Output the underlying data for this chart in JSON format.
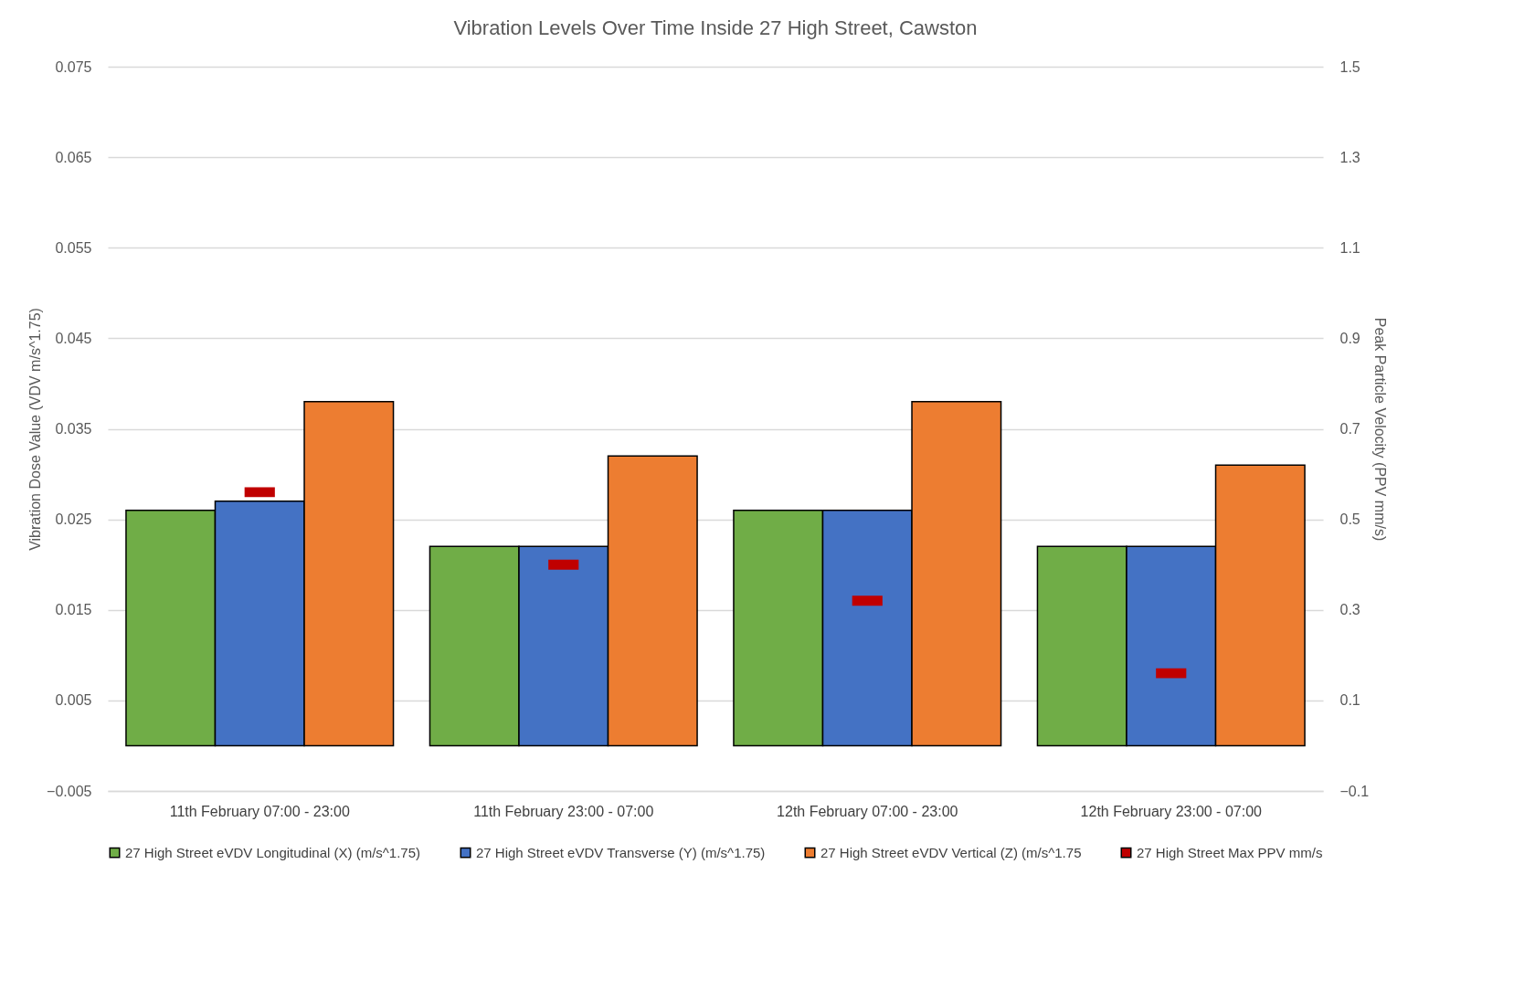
{
  "chart_data": {
    "type": "bar",
    "title": "Vibration Levels Over Time Inside 27 High Street, Cawston",
    "ylabel": "Vibration Dose Value (VDV m/s^1.75)",
    "y2label": "Peak Particle Velocity (PPV mm/s)",
    "categories": [
      "11th February 07:00 - 23:00",
      "11th February 23:00 - 07:00",
      "12th February 07:00 - 23:00",
      "12th February 23:00 - 07:00"
    ],
    "series": [
      {
        "name": "27 High Street eVDV Longitudinal (X) (m/s^1.75)",
        "color": "#70ad47",
        "values": [
          0.026,
          0.022,
          0.026,
          0.022
        ]
      },
      {
        "name": "27 High Street eVDV Transverse (Y) (m/s^1.75)",
        "color": "#4472c4",
        "values": [
          0.027,
          0.022,
          0.026,
          0.022
        ]
      },
      {
        "name": "27 High Street eVDV Vertical (Z) (m/s^1.75",
        "color": "#ed7d31",
        "values": [
          0.038,
          0.032,
          0.038,
          0.031
        ]
      },
      {
        "name": "27 High Street Max PPV mm/s",
        "color": "#c00000",
        "type": "scatter",
        "axis": "y2",
        "x": [
          "11th February 07:00 - 23:00",
          "11th February 23:00 - 07:00",
          "12th February 07:00 - 23:00",
          "12th February 23:00 - 07:00"
        ],
        "values": [
          0.56,
          0.4,
          0.32,
          0.16
        ]
      }
    ],
    "ylim": [
      -0.005,
      0.075
    ],
    "yticks": [
      -0.005,
      0.005,
      0.015,
      0.025,
      0.035,
      0.045,
      0.055,
      0.065,
      0.075
    ],
    "y2lim": [
      -0.1,
      1.5
    ],
    "y2ticks": [
      -0.1,
      0.1,
      0.3,
      0.5,
      0.7,
      0.9,
      1.1,
      1.3,
      1.5
    ],
    "grid": "y",
    "legend": "bottom"
  }
}
